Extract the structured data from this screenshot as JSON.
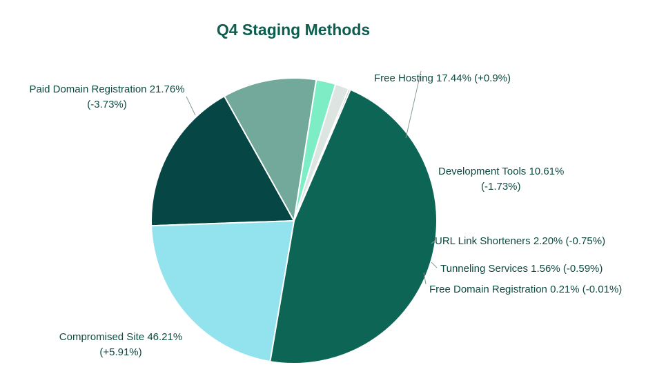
{
  "chart_data": {
    "type": "pie",
    "title": "Q4 Staging Methods",
    "slices": [
      {
        "label": "Free Hosting",
        "value": 17.44,
        "change": "+0.9%",
        "color": "#064644",
        "text_lines": [
          "Free Hosting 17.44% (+0.9%)"
        ]
      },
      {
        "label": "Development Tools",
        "value": 10.61,
        "change": "-1.73%",
        "color": "#72a99a",
        "text_lines": [
          "Development Tools 10.61%",
          "(-1.73%)"
        ]
      },
      {
        "label": "URL Link Shorteners",
        "value": 2.2,
        "change": "-0.75%",
        "color": "#7dedc6",
        "text_lines": [
          "URL Link Shorteners 2.20% (-0.75%)"
        ]
      },
      {
        "label": "Tunneling Services",
        "value": 1.56,
        "change": "-0.59%",
        "color": "#dde5e3",
        "text_lines": [
          "Tunneling Services 1.56% (-0.59%)"
        ]
      },
      {
        "label": "Free Domain Registration",
        "value": 0.21,
        "change": "-0.01%",
        "color": "#9bb0aa",
        "text_lines": [
          "Free Domain Registration 0.21% (-0.01%)"
        ]
      },
      {
        "label": "Compromised Site",
        "value": 46.21,
        "change": "+5.91%",
        "color": "#0d6655",
        "text_lines": [
          "Compromised Site 46.21%",
          "(+5.91%)"
        ]
      },
      {
        "label": "Paid Domain Registration",
        "value": 21.76,
        "change": "-3.73%",
        "color": "#93e3ef",
        "text_lines": [
          "Paid Domain Registration 21.76%",
          "(-3.73%)"
        ]
      }
    ],
    "legend": "none",
    "label_color": "#0d4a40"
  }
}
